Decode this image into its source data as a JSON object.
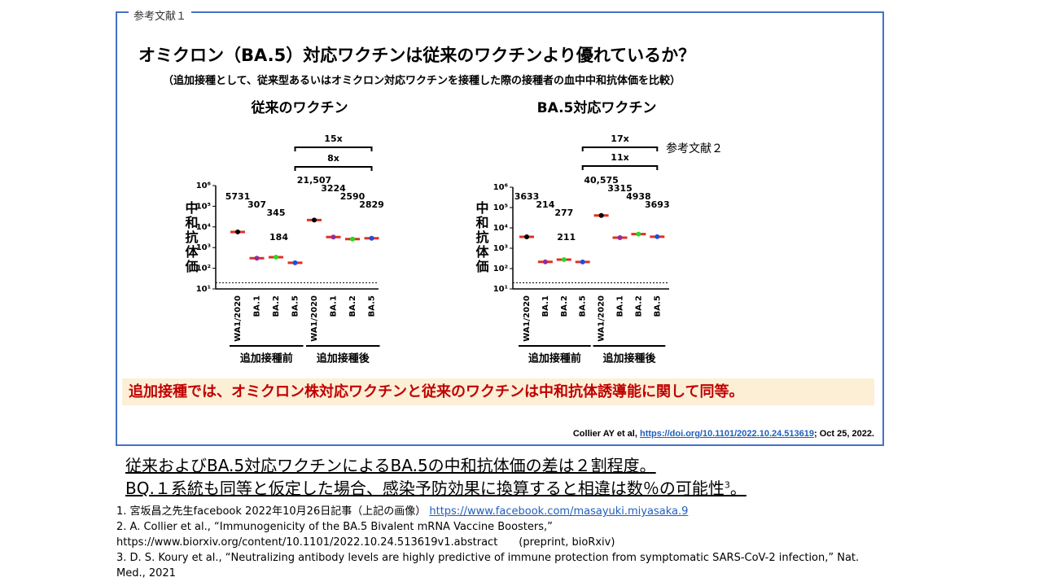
{
  "slide": {
    "box_label": "参考文献１",
    "title": "オミクロン（BA.5）対応ワクチンは従来のワクチンより優れているか？",
    "subtitle": "（追加接種として、従来型あるいはオミクロン対応ワクチンを接種した際の接種者の血中中和抗体価を比較）",
    "reference_mark": "参考文献２",
    "conclusion": "追加接種では、オミクロン株対応ワクチンと従来のワクチンは中和抗体誘導能に関して同等。",
    "citation": {
      "prefix": "Collier AY et al, ",
      "link": "https://doi.org/10.1101/2022.10.24.513619",
      "suffix": "; Oct 25, 2022."
    },
    "summary": [
      "従来およびBA.5対応ワクチンによるBA.5の中和抗体価の差は２割程度。",
      "BQ.１系統も同等と仮定した場合、感染予防効果に換算すると相違は数％の可能性"
    ],
    "summary_sup": "3",
    "summary_end": "。",
    "references": [
      {
        "text": "1. 宮坂昌之先生facebook 2022年10月26日記事（上記の画像）",
        "link": "https://www.facebook.com/masayuki.miyasaka.9"
      },
      {
        "text": "2. A. Collier et al., “Immunogenicity of the BA.5 Bivalent mRNA Vaccine Boosters,”"
      },
      {
        "text": "https://www.biorxiv.org/content/10.1101/2022.10.24.513619v1.abstract　　(preprint, bioRxiv)"
      },
      {
        "text": "3. D. S. Koury et al., “Neutralizing antibody levels are highly predictive of immune protection from symptomatic SARS-CoV-2 infection,” Nat. Med., 2021"
      }
    ]
  },
  "chart_data": [
    {
      "type": "dot",
      "title": "従来のワクチン",
      "ylabel": "中和抗体価",
      "categories": [
        "WA1/2020",
        "BA.1",
        "BA.2",
        "BA.5",
        "WA1/2020",
        "BA.1",
        "BA.2",
        "BA.5"
      ],
      "values": [
        5731,
        307,
        345,
        184,
        21507,
        3224,
        2590,
        2829
      ],
      "value_labels": [
        "5731",
        "307",
        "345",
        "184",
        "21,507",
        "3224",
        "2590",
        "2829"
      ],
      "colors": [
        "#000000",
        "#8e2e9e",
        "#22dd22",
        "#1a4fe0",
        "#000000",
        "#8e2e9e",
        "#22dd22",
        "#1a4fe0"
      ],
      "groups": [
        "追加接種前",
        "追加接種後"
      ],
      "fold_changes": [
        "15x",
        "8x"
      ],
      "threshold": 20,
      "log_scale": true,
      "ylim": [
        10,
        1000000
      ],
      "yticks": [
        {
          "value": 10,
          "label": "10¹"
        },
        {
          "value": 100,
          "label": "10²"
        },
        {
          "value": 1000,
          "label": "10³"
        },
        {
          "value": 10000,
          "label": "10⁴"
        },
        {
          "value": 100000,
          "label": "10⁵"
        },
        {
          "value": 1000000,
          "label": "10⁶"
        }
      ]
    },
    {
      "type": "dot",
      "title": "BA.5対応ワクチン",
      "ylabel": "中和抗体価",
      "categories": [
        "WA1/2020",
        "BA.1",
        "BA.2",
        "BA.5",
        "WA1/2020",
        "BA.1",
        "BA.2",
        "BA.5"
      ],
      "values": [
        3633,
        214,
        277,
        211,
        40575,
        3315,
        4938,
        3693
      ],
      "value_labels": [
        "3633",
        "214",
        "277",
        "211",
        "40,575",
        "3315",
        "4938",
        "3693"
      ],
      "colors": [
        "#000000",
        "#8e2e9e",
        "#22dd22",
        "#1a4fe0",
        "#000000",
        "#8e2e9e",
        "#22dd22",
        "#1a4fe0"
      ],
      "groups": [
        "追加接種前",
        "追加接種後"
      ],
      "fold_changes": [
        "17x",
        "11x"
      ],
      "threshold": 20,
      "log_scale": true,
      "ylim": [
        10,
        1000000
      ],
      "yticks": [
        {
          "value": 10,
          "label": "10¹"
        },
        {
          "value": 100,
          "label": "10²"
        },
        {
          "value": 1000,
          "label": "10³"
        },
        {
          "value": 10000,
          "label": "10⁴"
        },
        {
          "value": 100000,
          "label": "10⁵"
        },
        {
          "value": 1000000,
          "label": "10⁶"
        }
      ]
    }
  ]
}
